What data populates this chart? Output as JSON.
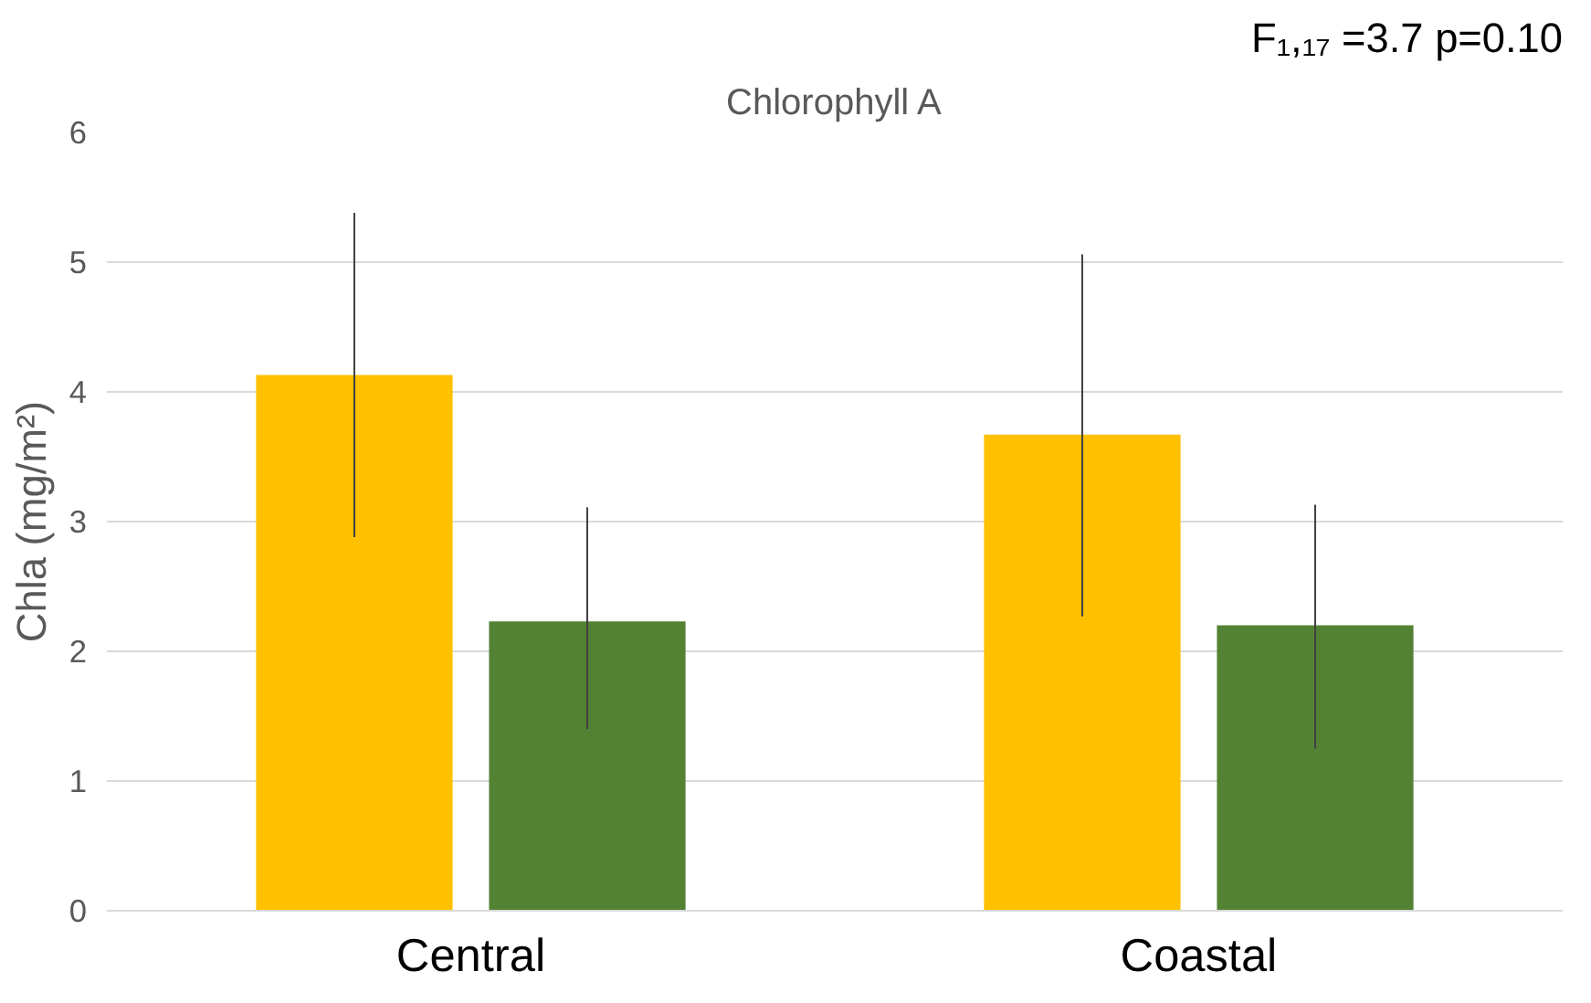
{
  "chart_data": {
    "type": "bar",
    "title": "Chlorophyll A",
    "ylabel": "Chla (mg/m²)",
    "categories": [
      "Central",
      "Coastal"
    ],
    "series": [
      {
        "color": "#ffc000",
        "values": [
          4.13,
          3.67
        ],
        "errors": [
          [
            2.88,
            5.38
          ],
          [
            2.27,
            5.06
          ]
        ]
      },
      {
        "color": "#548235",
        "values": [
          2.23,
          2.2
        ],
        "errors": [
          [
            1.4,
            3.11
          ],
          [
            1.25,
            3.13
          ]
        ]
      }
    ],
    "ylim": [
      0,
      6
    ],
    "yticks": [
      0,
      1,
      2,
      3,
      4,
      5,
      6
    ],
    "grid": "y",
    "annotations": [
      "F₁,₁₇ =3.7 p=0.10"
    ]
  }
}
